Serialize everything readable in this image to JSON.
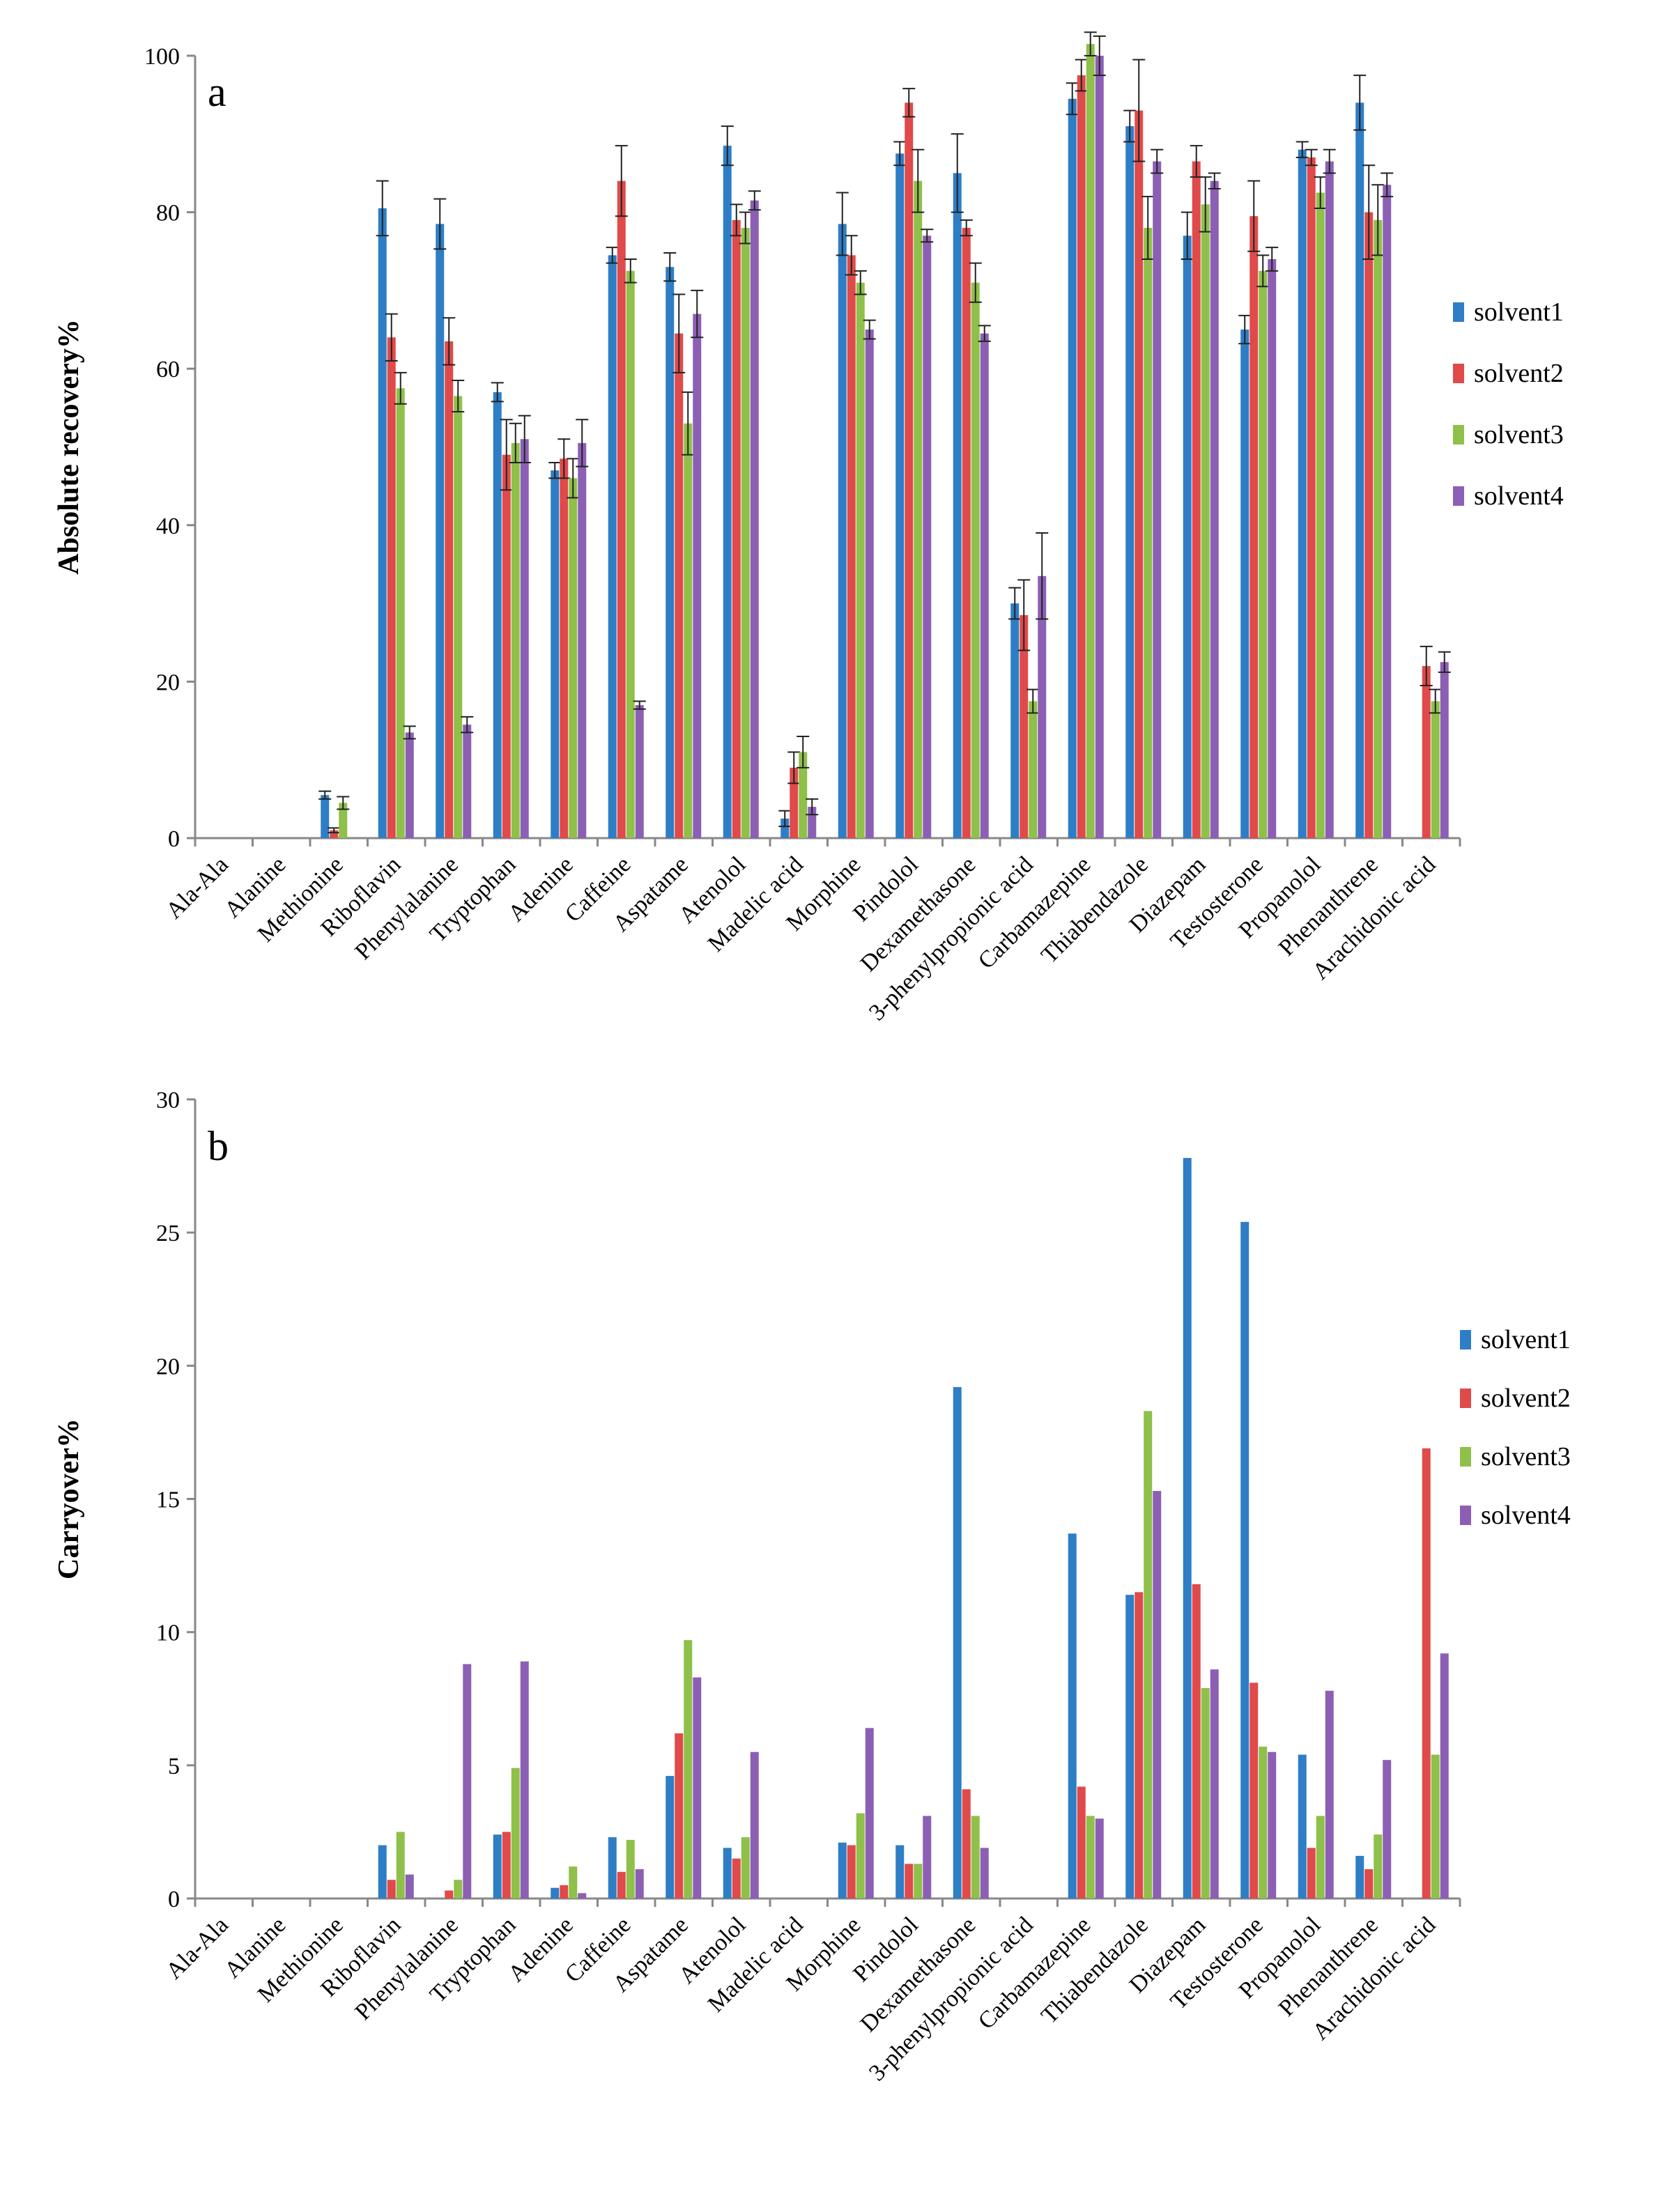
{
  "legend": {
    "solvent1": "solvent1",
    "solvent2": "solvent2",
    "solvent3": "solvent3",
    "solvent4": "solvent4"
  },
  "colors": {
    "solvent1": "#2e7ec6",
    "solvent2": "#e04a4a",
    "solvent3": "#8ec04a",
    "solvent4": "#8c5fb4",
    "axis": "#888888",
    "errbar": "#222222"
  },
  "chart_data": [
    {
      "id": "a",
      "type": "bar",
      "panel_label": "a",
      "ylabel": "Absolute recovery%",
      "xlabel": "",
      "ylim": [
        0,
        100
      ],
      "yticks": [
        0,
        20,
        40,
        60,
        80,
        100
      ],
      "legend_position": "right",
      "error_bars": true,
      "categories": [
        "Ala-Ala",
        "Alanine",
        "Methionine",
        "Riboflavin",
        "Phenylalanine",
        "Tryptophan",
        "Adenine",
        "Caffeine",
        "Aspatame",
        "Atenolol",
        "Madelic acid",
        "Morphine",
        "Pindolol",
        "Dexamethasone",
        "3-phenylpropionic acid",
        "Carbamazepine",
        "Thiabendazole",
        "Diazepam",
        "Testosterone",
        "Propanolol",
        "Phenanthrene",
        "Arachidonic acid"
      ],
      "series": [
        {
          "name": "solvent1",
          "values": [
            0,
            0,
            5.5,
            80.5,
            78.5,
            57,
            47,
            74.5,
            73,
            88.5,
            2.5,
            78.5,
            87.5,
            85,
            30,
            94.5,
            91,
            77,
            65,
            88,
            94,
            0
          ],
          "errors": [
            0,
            0,
            0.5,
            3.5,
            3.2,
            1.2,
            1,
            1,
            1.8,
            2.5,
            1,
            4,
            1.5,
            5,
            2,
            2,
            2,
            3,
            1.8,
            1,
            3.5,
            0
          ]
        },
        {
          "name": "solvent2",
          "values": [
            0,
            0,
            1,
            64,
            63.5,
            49,
            48.5,
            84,
            64.5,
            79,
            9,
            74.5,
            94,
            78,
            28.5,
            97.5,
            93,
            86.5,
            79.5,
            87,
            80,
            22
          ],
          "errors": [
            0,
            0,
            0.3,
            3,
            3,
            4.5,
            2.5,
            4.5,
            5,
            2,
            2,
            2.5,
            1.8,
            1,
            4.5,
            2,
            6.5,
            2,
            4.5,
            1,
            6,
            2.5
          ]
        },
        {
          "name": "solvent3",
          "values": [
            0,
            0,
            4.5,
            57.5,
            56.5,
            50.5,
            46,
            72.5,
            53,
            78,
            11,
            71,
            84,
            71,
            17.5,
            101.5,
            78,
            81,
            72.5,
            82.5,
            79,
            17.5
          ],
          "errors": [
            0,
            0,
            0.8,
            2,
            2,
            2.5,
            2.5,
            1.5,
            4,
            2,
            2,
            1.5,
            4,
            2.5,
            1.5,
            1.5,
            4,
            3.5,
            2,
            2,
            4.5,
            1.5
          ]
        },
        {
          "name": "solvent4",
          "values": [
            0,
            0,
            0,
            13.5,
            14.5,
            51,
            50.5,
            17,
            67,
            81.5,
            4,
            65,
            77,
            64.5,
            33.5,
            100,
            86.5,
            84,
            74,
            86.5,
            83.5,
            22.5
          ],
          "errors": [
            0,
            0,
            0,
            0.8,
            1,
            3,
            3,
            0.5,
            3,
            1.2,
            1,
            1.2,
            0.8,
            1,
            5.5,
            2.5,
            1.5,
            1,
            1.5,
            1.5,
            1.5,
            1.3
          ]
        }
      ]
    },
    {
      "id": "b",
      "type": "bar",
      "panel_label": "b",
      "ylabel": "Carryover%",
      "xlabel": "",
      "ylim": [
        0,
        30
      ],
      "yticks": [
        0,
        5,
        10,
        15,
        20,
        25,
        30
      ],
      "legend_position": "right",
      "error_bars": false,
      "categories": [
        "Ala-Ala",
        "Alanine",
        "Methionine",
        "Riboflavin",
        "Phenylalanine",
        "Tryptophan",
        "Adenine",
        "Caffeine",
        "Aspatame",
        "Atenolol",
        "Madelic acid",
        "Morphine",
        "Pindolol",
        "Dexamethasone",
        "3-phenylpropionic acid",
        "Carbamazepine",
        "Thiabendazole",
        "Diazepam",
        "Testosterone",
        "Propanolol",
        "Phenanthrene",
        "Arachidonic acid"
      ],
      "series": [
        {
          "name": "solvent1",
          "values": [
            0,
            0,
            0,
            2.0,
            0,
            2.4,
            0.4,
            2.3,
            4.6,
            1.9,
            0,
            2.1,
            2.0,
            19.2,
            0,
            13.7,
            11.4,
            27.8,
            25.4,
            5.4,
            1.6,
            0
          ]
        },
        {
          "name": "solvent2",
          "values": [
            0,
            0,
            0,
            0.7,
            0.3,
            2.5,
            0.5,
            1.0,
            6.2,
            1.5,
            0,
            2.0,
            1.3,
            4.1,
            0,
            4.2,
            11.5,
            11.8,
            8.1,
            1.9,
            1.1,
            16.9
          ]
        },
        {
          "name": "solvent3",
          "values": [
            0,
            0,
            0,
            2.5,
            0.7,
            4.9,
            1.2,
            2.2,
            9.7,
            2.3,
            0,
            3.2,
            1.3,
            3.1,
            0,
            3.1,
            18.3,
            7.9,
            5.7,
            3.1,
            2.4,
            5.4
          ]
        },
        {
          "name": "solvent4",
          "values": [
            0,
            0,
            0,
            0.9,
            8.8,
            8.9,
            0.2,
            1.1,
            8.3,
            5.5,
            0,
            6.4,
            3.1,
            1.9,
            0,
            3.0,
            15.3,
            8.6,
            5.5,
            7.8,
            5.2,
            9.2
          ]
        }
      ]
    }
  ]
}
